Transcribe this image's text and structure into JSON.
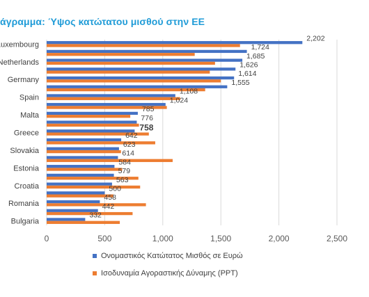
{
  "title": "άγραμμα: Ύψος κατώτατου μισθού στην ΕΕ",
  "colors": {
    "title": "#1f9bd7",
    "series1": "#4472c4",
    "series2": "#ed7d31",
    "grid": "#d9d9d9"
  },
  "chart_data": {
    "type": "bar",
    "orientation": "horizontal",
    "title": "άγραμμα: Ύψος κατώτατου μισθού στην ΕΕ",
    "categories": [
      "Luxembourg",
      "",
      "Netherlands",
      "",
      "Germany",
      "",
      "Spain",
      "",
      "Malta",
      "",
      "Greece",
      "",
      "Slovakia",
      "",
      "Estonia",
      "",
      "Croatia",
      "",
      "Romania",
      "",
      "Bulgaria"
    ],
    "series": [
      {
        "name": "Ονομαστικός Κατώτατος Μισθός σε Ευρώ",
        "values": [
          2202,
          1724,
          1685,
          1626,
          1614,
          1555,
          1108,
          1024,
          785,
          776,
          758,
          642,
          623,
          614,
          584,
          579,
          563,
          500,
          458,
          442,
          332
        ]
      },
      {
        "name": "Ισοδυναμία Αγοραστικής Δύναμης (PPT)",
        "values": [
          1665,
          1275,
          1450,
          1405,
          1500,
          1365,
          1150,
          1035,
          720,
          795,
          880,
          935,
          640,
          1085,
          650,
          790,
          805,
          575,
          855,
          740,
          630
        ]
      }
    ],
    "data_labels": [
      "2,202",
      "1,724",
      "1,685",
      "1,626",
      "1,614",
      "1,555",
      "1,108",
      "1,024",
      "785",
      "776",
      "758",
      "642",
      "623",
      "614",
      "584",
      "579",
      "563",
      "500",
      "458",
      "442",
      "332"
    ],
    "emphasized_label_index": 10,
    "xlim": [
      0,
      2500
    ],
    "xticks": [
      0,
      500,
      1000,
      1500,
      2000,
      2500
    ],
    "xtick_labels": [
      "0",
      "500",
      "1,000",
      "1,500",
      "2,000",
      "2,500"
    ],
    "grid": true,
    "legend_position": "bottom"
  }
}
